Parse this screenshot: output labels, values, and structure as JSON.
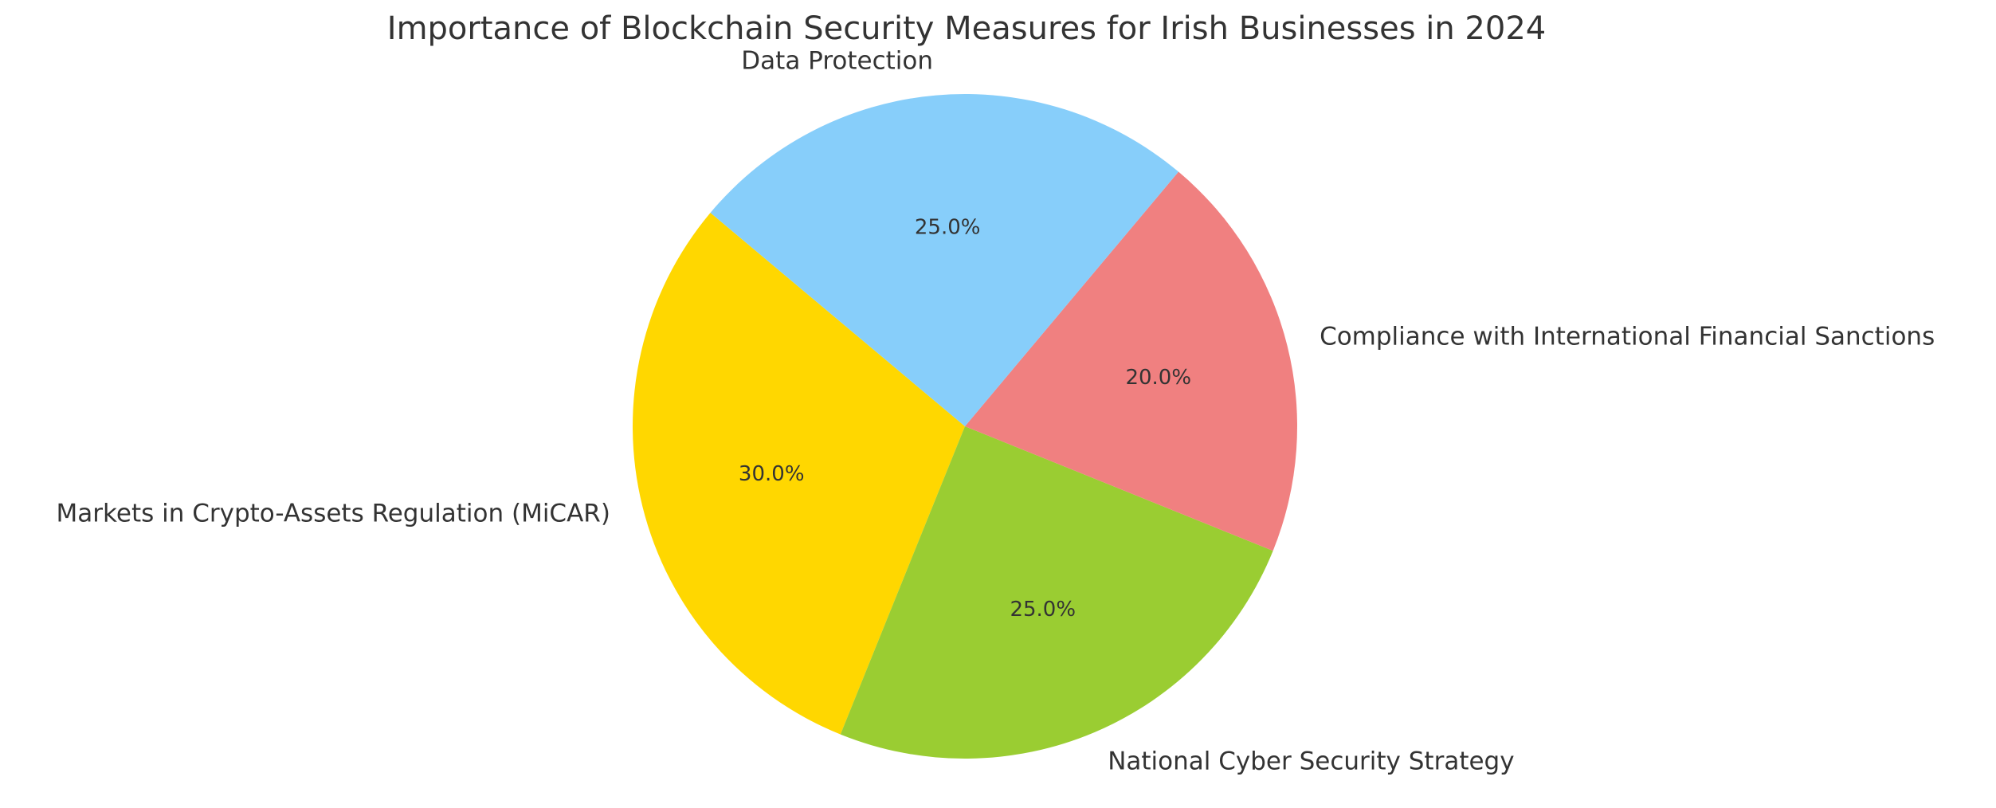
{
  "chart_data": {
    "type": "pie",
    "title": "Importance of Blockchain Security Measures for Irish Businesses in 2024",
    "categories": [
      "Markets in Crypto-Assets Regulation (MiCAR)",
      "National Cyber Security Strategy",
      "Compliance with International Financial Sanctions",
      "Data Protection"
    ],
    "values": [
      30,
      25,
      20,
      25
    ],
    "value_labels": [
      "30.0%",
      "25.0%",
      "20.0%",
      "25.0%"
    ],
    "colors": [
      "#ffd700",
      "#9acd32",
      "#f08080",
      "#87cefa"
    ]
  }
}
